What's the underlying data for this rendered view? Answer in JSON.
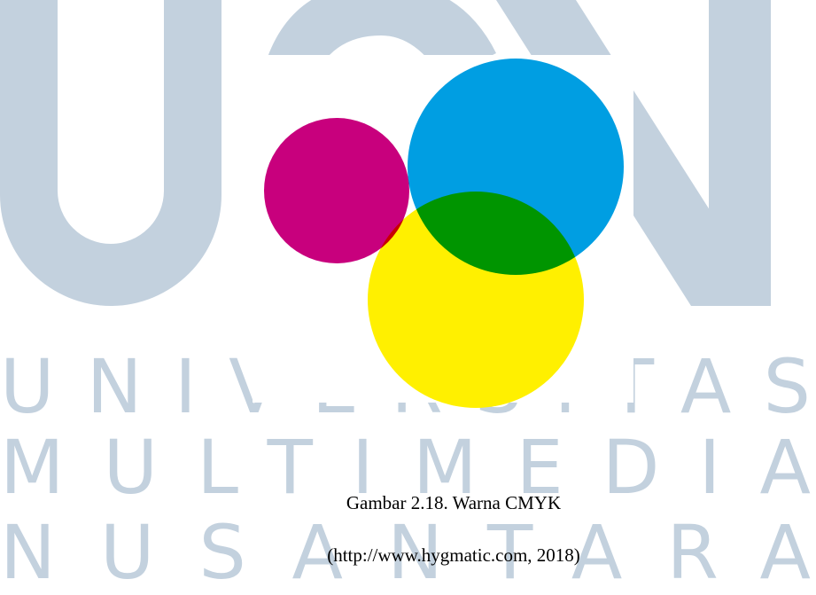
{
  "watermark": {
    "lines": [
      "UNIVERSITAS",
      "MULTIMEDIA",
      "NUSANTARA"
    ]
  },
  "figure": {
    "caption": "Gambar 2.18. Warna CMYK",
    "source": "(http://www.hygmatic.com, 2018)"
  }
}
